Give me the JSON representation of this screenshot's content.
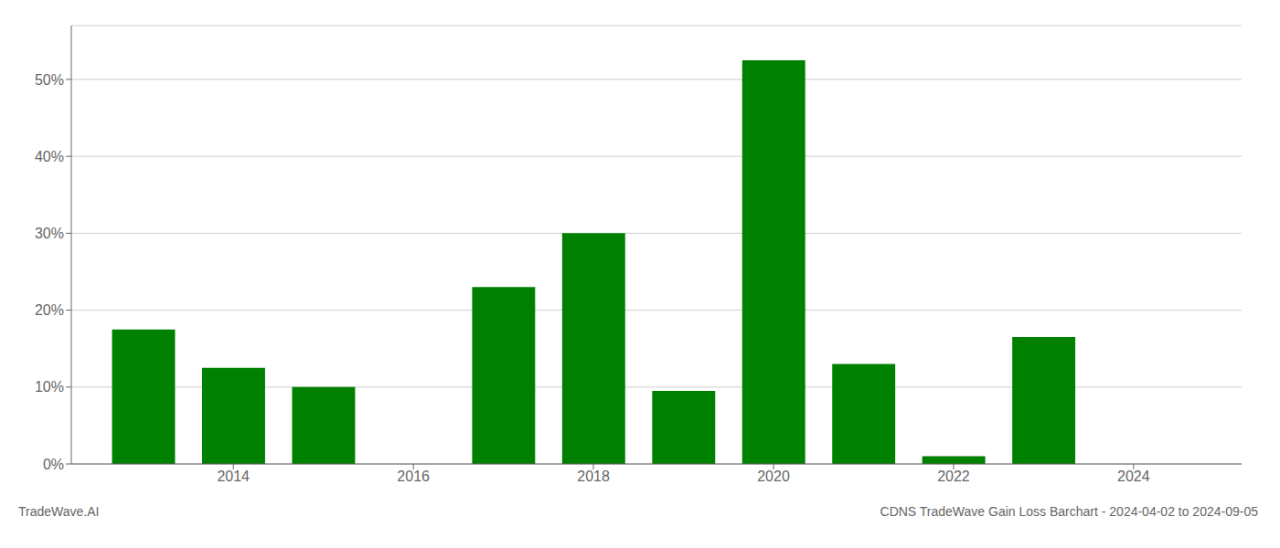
{
  "chart_data": {
    "type": "bar",
    "title": "CDNS TradeWave Gain Loss Barchart - 2024-04-02 to 2024-09-05",
    "annotations": [
      "TradeWave.AI"
    ],
    "x": [
      2013,
      2014,
      2015,
      2016,
      2017,
      2018,
      2019,
      2020,
      2021,
      2022,
      2023,
      2024
    ],
    "values": [
      17.5,
      12.5,
      10.0,
      0.0,
      23.0,
      30.0,
      9.5,
      52.5,
      13.0,
      1.0,
      16.5,
      0.0
    ],
    "color": "#008000",
    "xlim": [
      2012.2,
      2025.2
    ],
    "xticks": [
      2014,
      2016,
      2018,
      2020,
      2022,
      2024
    ],
    "ylim": [
      0,
      57
    ],
    "yticks": [
      {
        "value": 0,
        "label": "0%"
      },
      {
        "value": 10,
        "label": "10%"
      },
      {
        "value": 20,
        "label": "20%"
      },
      {
        "value": 30,
        "label": "30%"
      },
      {
        "value": 40,
        "label": "40%"
      },
      {
        "value": 50,
        "label": "50%"
      }
    ],
    "grid": true
  }
}
